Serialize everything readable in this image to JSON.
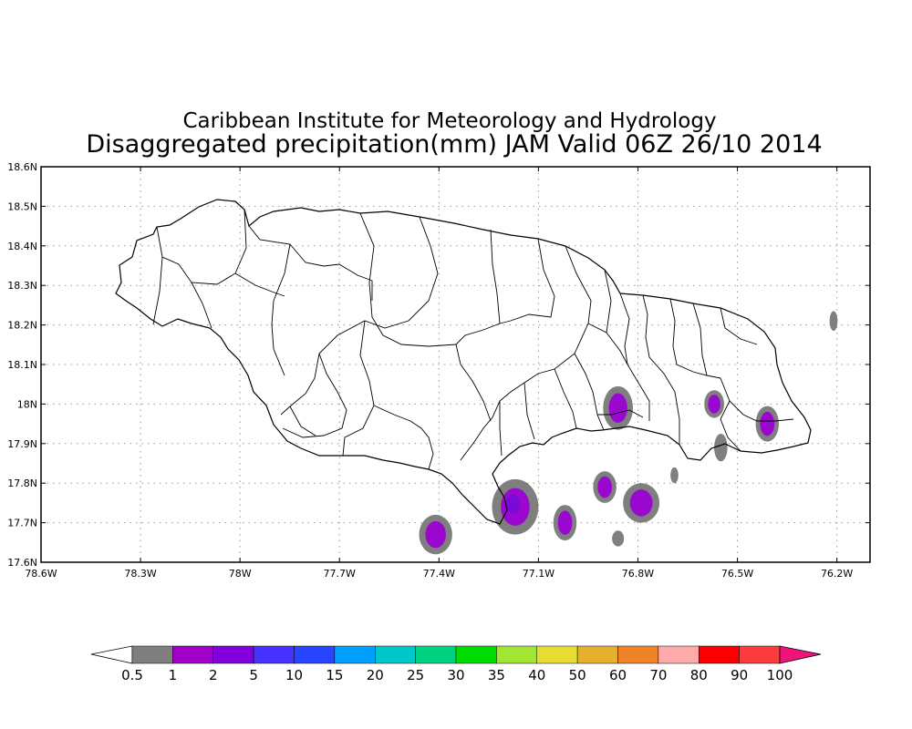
{
  "title": {
    "line1": "Caribbean Institute for Meteorology and Hydrology",
    "line2": "Disaggregated precipitation(mm) JAM Valid 06Z 26/10 2014"
  },
  "axes": {
    "lat_range": [
      17.6,
      18.6
    ],
    "lon_range": [
      -78.6,
      -76.1
    ],
    "lat_ticks": [
      {
        "value": 18.6,
        "label": "18.6N"
      },
      {
        "value": 18.5,
        "label": "18.5N"
      },
      {
        "value": 18.4,
        "label": "18.4N"
      },
      {
        "value": 18.3,
        "label": "18.3N"
      },
      {
        "value": 18.2,
        "label": "18.2N"
      },
      {
        "value": 18.1,
        "label": "18.1N"
      },
      {
        "value": 18.0,
        "label": "18N"
      },
      {
        "value": 17.9,
        "label": "17.9N"
      },
      {
        "value": 17.8,
        "label": "17.8N"
      },
      {
        "value": 17.7,
        "label": "17.7N"
      },
      {
        "value": 17.6,
        "label": "17.6N"
      }
    ],
    "lon_ticks": [
      {
        "value": -78.6,
        "label": "78.6W"
      },
      {
        "value": -78.3,
        "label": "78.3W"
      },
      {
        "value": -78.0,
        "label": "78W"
      },
      {
        "value": -77.7,
        "label": "77.7W"
      },
      {
        "value": -77.4,
        "label": "77.4W"
      },
      {
        "value": -77.1,
        "label": "77.1W"
      },
      {
        "value": -76.8,
        "label": "76.8W"
      },
      {
        "value": -76.5,
        "label": "76.5W"
      },
      {
        "value": -76.2,
        "label": "76.2W"
      }
    ],
    "grid": true
  },
  "colors": {
    "coast": "#000000",
    "grid": "#999999",
    "gray": "#7f7f7f",
    "purple": "#9a08d0",
    "violet": "#7a0ad8"
  },
  "precip_cells": [
    {
      "lon": -76.86,
      "lat": 17.99,
      "rx": 0.045,
      "ry": 0.055,
      "level": 1
    },
    {
      "lon": -76.57,
      "lat": 18.0,
      "rx": 0.03,
      "ry": 0.035,
      "level": 1
    },
    {
      "lon": -76.41,
      "lat": 17.95,
      "rx": 0.035,
      "ry": 0.045,
      "level": 1
    },
    {
      "lon": -76.55,
      "lat": 17.89,
      "rx": 0.02,
      "ry": 0.035,
      "level": 0
    },
    {
      "lon": -76.9,
      "lat": 17.79,
      "rx": 0.035,
      "ry": 0.04,
      "level": 1
    },
    {
      "lon": -76.79,
      "lat": 17.75,
      "rx": 0.055,
      "ry": 0.05,
      "level": 1
    },
    {
      "lon": -76.69,
      "lat": 17.82,
      "rx": 0.012,
      "ry": 0.02,
      "level": 0
    },
    {
      "lon": -77.02,
      "lat": 17.7,
      "rx": 0.035,
      "ry": 0.045,
      "level": 1
    },
    {
      "lon": -76.86,
      "lat": 17.66,
      "rx": 0.018,
      "ry": 0.02,
      "level": 0
    },
    {
      "lon": -77.17,
      "lat": 17.74,
      "rx": 0.07,
      "ry": 0.07,
      "level": 2
    },
    {
      "lon": -77.41,
      "lat": 17.67,
      "rx": 0.05,
      "ry": 0.05,
      "level": 1
    },
    {
      "lon": -76.21,
      "lat": 18.21,
      "rx": 0.012,
      "ry": 0.025,
      "level": 0
    }
  ],
  "legend": {
    "colors": [
      "#7f7f7f",
      "#a000c8",
      "#8200dc",
      "#4632ff",
      "#2846ff",
      "#00a0ff",
      "#00c8c8",
      "#00d282",
      "#00dc00",
      "#a0e632",
      "#e6dc32",
      "#e6af2d",
      "#f08228",
      "#ffaaaa",
      "#fa0000",
      "#fa3c3c"
    ],
    "left_arrow_color": "#ffffff",
    "right_arrow_color": "#f0147a",
    "labels": [
      "0.5",
      "1",
      "2",
      "5",
      "10",
      "15",
      "20",
      "25",
      "30",
      "35",
      "40",
      "50",
      "60",
      "70",
      "80",
      "90",
      "100"
    ]
  }
}
